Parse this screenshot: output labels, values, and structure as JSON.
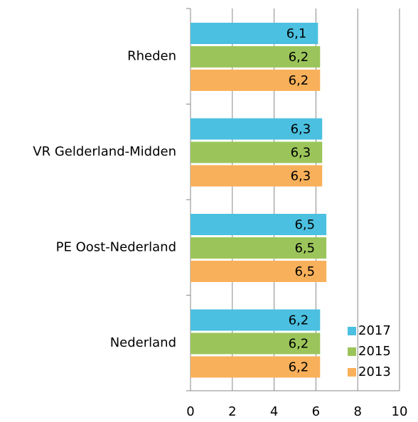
{
  "chart_data": {
    "type": "hbar",
    "categories": [
      "Rheden",
      "VR Gelderland-Midden",
      "PE Oost-Nederland",
      "Nederland"
    ],
    "series": [
      {
        "name": "2017",
        "color": "#4bc0e0",
        "values": [
          6.1,
          6.3,
          6.5,
          6.2
        ],
        "value_labels": [
          "6,1",
          "6,3",
          "6,5",
          "6,2"
        ]
      },
      {
        "name": "2015",
        "color": "#9bc55a",
        "values": [
          6.2,
          6.3,
          6.5,
          6.2
        ],
        "value_labels": [
          "6,2",
          "6,3",
          "6,5",
          "6,2"
        ]
      },
      {
        "name": "2013",
        "color": "#f9b05a",
        "values": [
          6.2,
          6.3,
          6.5,
          6.2
        ],
        "value_labels": [
          "6,2",
          "6,3",
          "6,5",
          "6,2"
        ]
      }
    ],
    "xlim": [
      0,
      10
    ],
    "xticks": [
      0,
      2,
      4,
      6,
      8,
      10
    ],
    "grid": true,
    "legend": "lower right"
  }
}
